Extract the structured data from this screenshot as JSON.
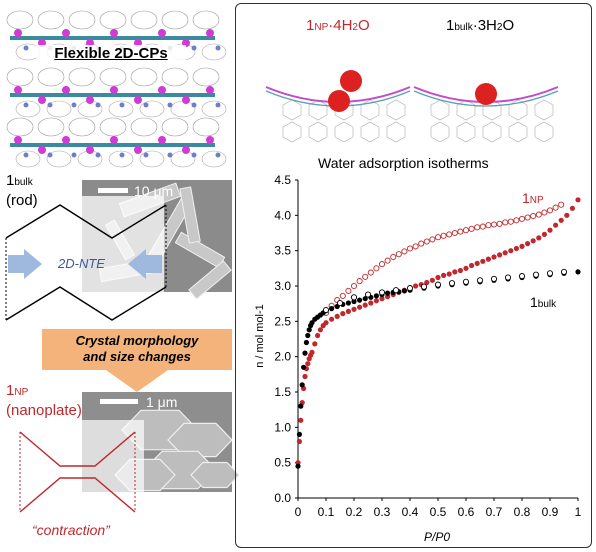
{
  "left": {
    "header_title": "Flexible 2D-CPs",
    "bulk_label": {
      "main": "1",
      "sub": "bulk",
      "form": "(rod)"
    },
    "scale_top": "10 μm",
    "ntE_label": "2D-NTE",
    "banner": {
      "line1": "Crystal morphology",
      "line2": "and size changes"
    },
    "np_label": {
      "main": "1",
      "sub": "NP",
      "form": "(nanoplate)"
    },
    "scale_bottom": "1 μm",
    "contraction": "“contraction”",
    "colors": {
      "red": "#c0282d",
      "arrow_blue": "#9fb8de",
      "banner_orange": "#f3b37a"
    }
  },
  "right": {
    "np_formula": {
      "main": "1",
      "sub": "NP",
      "suffix": "·4H",
      "sub2": "2",
      "end": "O"
    },
    "bulk_formula": {
      "main": "1",
      "sub": "bulk",
      "suffix": "·3H",
      "sub2": "2",
      "end": "O"
    },
    "chart_title": "Water adsorption isotherms"
  },
  "chart_data": {
    "type": "scatter",
    "title": "Water adsorption isotherms",
    "xlabel": "P/P0",
    "ylabel": "n / mol mol-1",
    "xlim": [
      0,
      1
    ],
    "ylim": [
      0,
      4.5
    ],
    "xticks": [
      "0",
      "0.1",
      "0.2",
      "0.3",
      "0.4",
      "0.5",
      "0.6",
      "0.7",
      "0.8",
      "0.9",
      "1"
    ],
    "yticks": [
      "0.0",
      "0.5",
      "1.0",
      "1.5",
      "2.0",
      "2.5",
      "3.0",
      "3.5",
      "4.0",
      "4.5"
    ],
    "series": [
      {
        "name": "1NP",
        "label_main": "1",
        "label_sub": "NP",
        "color": "#c0282d",
        "style": "filled",
        "x": [
          0.0,
          0.005,
          0.01,
          0.015,
          0.02,
          0.025,
          0.03,
          0.035,
          0.04,
          0.045,
          0.05,
          0.06,
          0.07,
          0.08,
          0.09,
          0.1,
          0.12,
          0.14,
          0.16,
          0.18,
          0.2,
          0.22,
          0.24,
          0.26,
          0.28,
          0.3,
          0.32,
          0.34,
          0.36,
          0.38,
          0.4,
          0.42,
          0.44,
          0.46,
          0.48,
          0.5,
          0.52,
          0.54,
          0.56,
          0.58,
          0.6,
          0.62,
          0.64,
          0.66,
          0.68,
          0.7,
          0.72,
          0.74,
          0.76,
          0.78,
          0.8,
          0.82,
          0.84,
          0.86,
          0.88,
          0.9,
          0.92,
          0.94,
          0.96,
          0.98,
          1.0
        ],
        "y": [
          0.5,
          0.8,
          1.1,
          1.35,
          1.55,
          1.72,
          1.83,
          1.9,
          1.97,
          2.02,
          2.06,
          2.18,
          2.3,
          2.38,
          2.44,
          2.48,
          2.53,
          2.57,
          2.61,
          2.64,
          2.67,
          2.7,
          2.73,
          2.76,
          2.79,
          2.82,
          2.85,
          2.88,
          2.91,
          2.94,
          2.97,
          3.0,
          3.02,
          3.05,
          3.08,
          3.12,
          3.15,
          3.17,
          3.2,
          3.22,
          3.25,
          3.29,
          3.32,
          3.35,
          3.38,
          3.41,
          3.44,
          3.47,
          3.5,
          3.53,
          3.56,
          3.6,
          3.64,
          3.68,
          3.73,
          3.79,
          3.86,
          3.93,
          4.0,
          4.1,
          4.22
        ]
      },
      {
        "name": "1NP desorption",
        "color": "#c0282d",
        "style": "open",
        "x": [
          0.1,
          0.12,
          0.14,
          0.16,
          0.18,
          0.2,
          0.22,
          0.24,
          0.26,
          0.28,
          0.3,
          0.32,
          0.34,
          0.36,
          0.38,
          0.4,
          0.42,
          0.44,
          0.46,
          0.48,
          0.5,
          0.52,
          0.54,
          0.56,
          0.58,
          0.6,
          0.62,
          0.64,
          0.66,
          0.68,
          0.7,
          0.72,
          0.74,
          0.76,
          0.78,
          0.8,
          0.82,
          0.84,
          0.86,
          0.88,
          0.9,
          0.92,
          0.94
        ],
        "y": [
          2.62,
          2.72,
          2.8,
          2.86,
          2.93,
          3.0,
          3.07,
          3.13,
          3.19,
          3.25,
          3.31,
          3.36,
          3.41,
          3.45,
          3.49,
          3.53,
          3.56,
          3.6,
          3.63,
          3.66,
          3.69,
          3.71,
          3.73,
          3.75,
          3.77,
          3.79,
          3.81,
          3.83,
          3.84,
          3.86,
          3.87,
          3.88,
          3.9,
          3.91,
          3.93,
          3.95,
          3.97,
          3.99,
          4.01,
          4.04,
          4.07,
          4.11,
          4.15
        ]
      },
      {
        "name": "1bulk",
        "label_main": "1",
        "label_sub": "bulk",
        "color": "#000000",
        "style": "filled",
        "x": [
          0.0,
          0.005,
          0.01,
          0.015,
          0.02,
          0.025,
          0.03,
          0.035,
          0.04,
          0.045,
          0.05,
          0.06,
          0.07,
          0.08,
          0.09,
          0.1,
          0.12,
          0.14,
          0.16,
          0.18,
          0.2,
          0.22,
          0.24,
          0.26,
          0.28,
          0.3,
          0.32,
          0.34,
          0.36,
          0.38,
          0.4,
          0.45,
          0.5,
          0.55,
          0.6,
          0.65,
          0.7,
          0.75,
          0.8,
          0.85,
          0.9,
          0.95,
          1.0
        ],
        "y": [
          0.45,
          0.9,
          1.3,
          1.6,
          1.85,
          2.05,
          2.2,
          2.3,
          2.38,
          2.44,
          2.48,
          2.53,
          2.56,
          2.59,
          2.62,
          2.65,
          2.68,
          2.71,
          2.74,
          2.76,
          2.78,
          2.8,
          2.82,
          2.84,
          2.86,
          2.88,
          2.9,
          2.91,
          2.92,
          2.93,
          2.94,
          2.97,
          3.0,
          3.02,
          3.04,
          3.06,
          3.08,
          3.1,
          3.12,
          3.14,
          3.16,
          3.18,
          3.2
        ]
      },
      {
        "name": "1bulk desorption",
        "color": "#000000",
        "style": "open",
        "x": [
          0.1,
          0.15,
          0.2,
          0.25,
          0.3,
          0.35,
          0.4,
          0.45,
          0.5,
          0.55,
          0.6,
          0.65,
          0.7,
          0.75,
          0.8,
          0.85,
          0.9,
          0.95
        ],
        "y": [
          2.66,
          2.76,
          2.84,
          2.88,
          2.91,
          2.94,
          2.97,
          2.99,
          3.02,
          3.04,
          3.06,
          3.08,
          3.1,
          3.12,
          3.14,
          3.16,
          3.18,
          3.2
        ]
      }
    ]
  }
}
